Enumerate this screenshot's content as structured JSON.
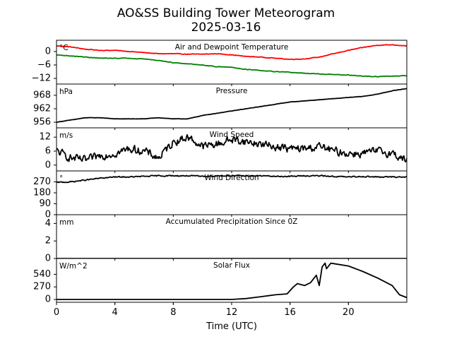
{
  "title_line1": "AO&SS Building Tower Meteorogram",
  "title_line2": "2025-03-16",
  "chart_data": {
    "type": "line",
    "xlabel": "Time (UTC)",
    "xlim": [
      0,
      24
    ],
    "xticks": [
      0,
      4,
      8,
      12,
      16,
      20
    ],
    "xtick_labels": [
      "0",
      "4",
      "8",
      "12",
      "16",
      "20"
    ],
    "panels": [
      {
        "key": "temp",
        "title": "Air and Dewpoint Temperature",
        "unit": "°C",
        "ylim": [
          -14.5,
          5
        ],
        "yticks": [
          0,
          -6,
          -12
        ],
        "ytick_labels": [
          "0",
          "−6",
          "−12"
        ],
        "noise": 0.2,
        "series": [
          {
            "name": "Air Temperature",
            "color": "#ff0000",
            "x": [
              0,
              1,
              2,
              3,
              4,
              5,
              6,
              7,
              8,
              9,
              10,
              11,
              12,
              13,
              14,
              15,
              16,
              17,
              18,
              19,
              20,
              21,
              22,
              23,
              24
            ],
            "y": [
              2.5,
              2.0,
              1.0,
              0.5,
              0.5,
              0.0,
              -0.5,
              -1.0,
              -1.0,
              -1.2,
              -1.2,
              -1.0,
              -1.5,
              -2.2,
              -2.5,
              -3.0,
              -3.5,
              -3.3,
              -2.5,
              -1.0,
              0.5,
              1.8,
              2.8,
              3.0,
              2.5
            ]
          },
          {
            "name": "Dewpoint Temperature",
            "color": "#008000",
            "x": [
              0,
              1,
              2,
              3,
              4,
              5,
              6,
              7,
              8,
              9,
              10,
              11,
              12,
              13,
              14,
              15,
              16,
              17,
              18,
              19,
              20,
              21,
              22,
              23,
              24
            ],
            "y": [
              -1.5,
              -2.0,
              -2.5,
              -3.0,
              -3.0,
              -3.0,
              -3.3,
              -4.0,
              -5.0,
              -5.5,
              -6.0,
              -6.8,
              -7.0,
              -8.0,
              -8.5,
              -9.0,
              -9.3,
              -9.7,
              -10.0,
              -10.3,
              -10.5,
              -11.0,
              -11.2,
              -11.0,
              -10.7
            ]
          }
        ]
      },
      {
        "key": "pressure",
        "title": "Pressure",
        "unit": "hPa",
        "ylim": [
          953.5,
          973
        ],
        "yticks": [
          956,
          962,
          968
        ],
        "ytick_labels": [
          "956",
          "962",
          "968"
        ],
        "noise": 0.1,
        "series": [
          {
            "name": "Pressure",
            "color": "#000000",
            "x": [
              0,
              1,
              2,
              3,
              4,
              5,
              6,
              7,
              8,
              9,
              10,
              11,
              12,
              13,
              14,
              15,
              16,
              17,
              18,
              19,
              20,
              21,
              22,
              23,
              24
            ],
            "y": [
              956,
              957,
              958,
              958,
              957.5,
              957.5,
              957.5,
              958,
              957.5,
              957.5,
              959,
              960,
              961,
              962,
              963,
              964,
              965,
              965.5,
              966,
              966.5,
              967,
              967.5,
              968.5,
              970,
              971
            ]
          }
        ]
      },
      {
        "key": "wind_speed",
        "title": "Wind Speed",
        "unit": "m/s",
        "ylim": [
          -2.5,
          16
        ],
        "yticks": [
          0,
          6,
          12
        ],
        "ytick_labels": [
          "0",
          "6",
          "12"
        ],
        "noise": 2.6,
        "series": [
          {
            "name": "Wind Speed",
            "color": "#000000",
            "x": [
              0,
              1,
              2,
              3,
              4,
              5,
              6,
              7,
              8,
              9,
              10,
              11,
              12,
              13,
              14,
              15,
              16,
              17,
              18,
              19,
              20,
              21,
              22,
              23,
              24
            ],
            "y": [
              6,
              3,
              2,
              4,
              5,
              7,
              6,
              3,
              10,
              12,
              8,
              9,
              11,
              10,
              9,
              8,
              7,
              7,
              8,
              6,
              5,
              5,
              6,
              5,
              2
            ]
          }
        ]
      },
      {
        "key": "wind_dir",
        "title": "Wind Direction",
        "unit": "°",
        "ylim": [
          0,
          360
        ],
        "yticks": [
          0,
          90,
          180,
          270
        ],
        "ytick_labels": [
          "0",
          "90",
          "180",
          "270"
        ],
        "noise": 7,
        "series": [
          {
            "name": "Wind Direction",
            "color": "#000000",
            "x": [
              0,
              1,
              2,
              3,
              4,
              5,
              6,
              7,
              8,
              9,
              10,
              11,
              12,
              13,
              14,
              15,
              16,
              17,
              18,
              19,
              20,
              21,
              22,
              23,
              24
            ],
            "y": [
              265,
              270,
              285,
              300,
              310,
              310,
              315,
              320,
              320,
              320,
              315,
              320,
              320,
              320,
              320,
              315,
              315,
              320,
              320,
              315,
              310,
              315,
              310,
              310,
              310
            ]
          }
        ]
      },
      {
        "key": "precip",
        "title": "Accumulated Precipitation Since 0Z",
        "unit": "mm",
        "ylim": [
          0,
          5
        ],
        "yticks": [
          0,
          2,
          4
        ],
        "ytick_labels": [
          "0",
          "2",
          "4"
        ],
        "noise": 0,
        "series": [
          {
            "name": "Accumulated Precipitation",
            "color": "#000000",
            "x": [
              0,
              24
            ],
            "y": [
              0,
              0
            ]
          }
        ]
      },
      {
        "key": "solar",
        "title": "Solar Flux",
        "unit": "W/m^2",
        "ylim": [
          -60,
          880
        ],
        "yticks": [
          0,
          270,
          540
        ],
        "ytick_labels": [
          "0",
          "270",
          "540"
        ],
        "noise": 0,
        "series": [
          {
            "name": "Solar Flux",
            "color": "#000000",
            "x": [
              0,
              12,
              13,
              14,
              15,
              15.8,
              16.2,
              16.5,
              17.0,
              17.4,
              17.8,
              18.0,
              18.2,
              18.4,
              18.5,
              18.8,
              19.0,
              20,
              21,
              22,
              23,
              23.5,
              24
            ],
            "y": [
              0,
              0,
              20,
              60,
              100,
              120,
              260,
              340,
              300,
              360,
              520,
              300,
              700,
              780,
              660,
              780,
              770,
              720,
              600,
              460,
              300,
              100,
              40
            ]
          }
        ]
      }
    ]
  }
}
